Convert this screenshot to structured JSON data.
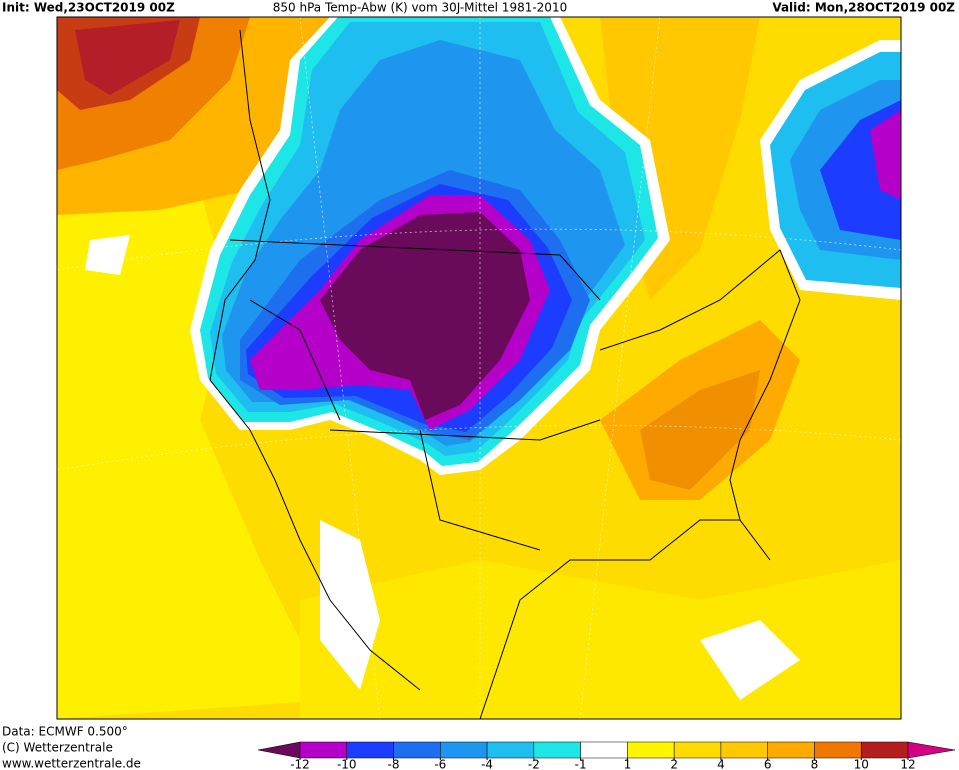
{
  "header": {
    "init": "Init: Wed,23OCT2019 00Z",
    "title": "850 hPa Temp-Abw (K) vom 30J-Mittel 1981-2010",
    "valid": "Valid: Mon,28OCT2019 00Z"
  },
  "footer": {
    "source": "Data: ECMWF  0.500°",
    "copyright": "(C) Wetterzentrale",
    "url": "www.wetterzentrale.de"
  },
  "colorbar": {
    "ticks": [
      -12,
      -10,
      -8,
      -6,
      -4,
      -2,
      -1,
      1,
      2,
      4,
      6,
      8,
      10,
      12
    ],
    "colors": [
      "#6a0a5a",
      "#b400c8",
      "#1c3cff",
      "#1e6ef0",
      "#1e96f0",
      "#1ebef0",
      "#1ee6e6",
      "#ffffff",
      "#fff500",
      "#ffdc00",
      "#ffc800",
      "#ffaa00",
      "#f07800",
      "#b41e1e",
      "#d40082"
    ]
  }
}
